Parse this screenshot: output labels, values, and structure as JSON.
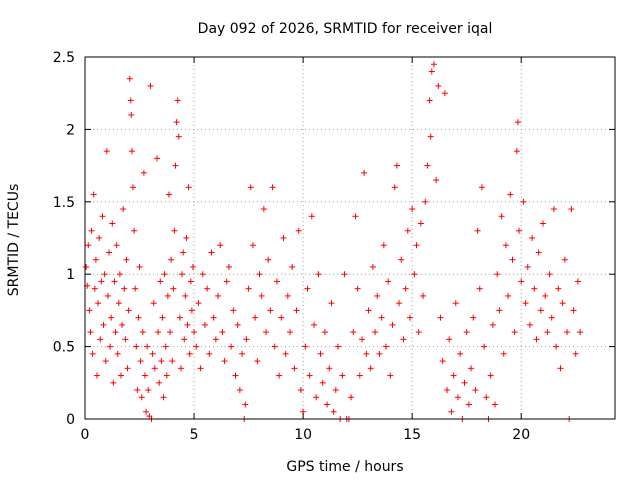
{
  "chart_data": {
    "type": "scatter",
    "title": "Day 092 of 2026, SRMTID for receiver iqal",
    "xlabel": "GPS time / hours",
    "ylabel": "SRMTID / TECUs",
    "xlim": [
      0,
      24.3
    ],
    "ylim": [
      0,
      2.5
    ],
    "x_ticks": [
      0,
      5,
      10,
      15,
      20
    ],
    "x_tick_labels": [
      "0",
      "5",
      "10",
      "15",
      "20"
    ],
    "y_ticks": [
      0,
      0.5,
      1,
      1.5,
      2,
      2.5
    ],
    "y_tick_labels": [
      "0",
      "0.5",
      "1",
      "1.5",
      "2",
      "2.5"
    ],
    "grid": true,
    "marker": "+",
    "marker_color": "#ff0000",
    "series": [
      {
        "name": "SRMTID",
        "points": [
          [
            0.05,
            1.05
          ],
          [
            0.1,
            0.92
          ],
          [
            0.15,
            1.2
          ],
          [
            0.2,
            0.75
          ],
          [
            0.25,
            0.6
          ],
          [
            0.3,
            1.3
          ],
          [
            0.35,
            0.45
          ],
          [
            0.4,
            1.55
          ],
          [
            0.45,
            0.9
          ],
          [
            0.5,
            1.1
          ],
          [
            0.55,
            0.3
          ],
          [
            0.6,
            0.8
          ],
          [
            0.65,
            1.25
          ],
          [
            0.7,
            0.55
          ],
          [
            0.75,
            0.95
          ],
          [
            0.8,
            1.4
          ],
          [
            0.85,
            0.65
          ],
          [
            0.9,
            1.0
          ],
          [
            0.95,
            0.4
          ],
          [
            1.0,
            1.85
          ],
          [
            1.05,
            0.85
          ],
          [
            1.1,
            1.15
          ],
          [
            1.15,
            0.5
          ],
          [
            1.2,
            0.7
          ],
          [
            1.25,
            1.35
          ],
          [
            1.3,
            0.25
          ],
          [
            1.35,
            0.95
          ],
          [
            1.4,
            0.6
          ],
          [
            1.45,
            1.2
          ],
          [
            1.5,
            0.45
          ],
          [
            1.55,
            0.8
          ],
          [
            1.6,
            1.0
          ],
          [
            1.65,
            0.3
          ],
          [
            1.7,
            0.65
          ],
          [
            1.75,
            1.45
          ],
          [
            1.8,
            0.9
          ],
          [
            1.85,
            0.55
          ],
          [
            1.9,
            1.1
          ],
          [
            1.95,
            0.35
          ],
          [
            2.0,
            0.75
          ],
          [
            2.05,
            2.35
          ],
          [
            2.1,
            2.2
          ],
          [
            2.12,
            2.1
          ],
          [
            2.15,
            1.85
          ],
          [
            2.2,
            1.6
          ],
          [
            2.25,
            1.3
          ],
          [
            2.3,
            0.9
          ],
          [
            2.35,
            0.5
          ],
          [
            2.4,
            0.2
          ],
          [
            2.45,
            0.7
          ],
          [
            2.5,
            1.05
          ],
          [
            2.55,
            0.4
          ],
          [
            2.6,
            0.15
          ],
          [
            2.65,
            0.6
          ],
          [
            2.7,
            1.7
          ],
          [
            2.75,
            0.3
          ],
          [
            2.8,
            0.05
          ],
          [
            2.85,
            0.5
          ],
          [
            2.9,
            0.2
          ],
          [
            2.95,
            0.02
          ],
          [
            3.0,
            2.3
          ],
          [
            3.05,
            0.0
          ],
          [
            3.1,
            0.45
          ],
          [
            3.15,
            0.8
          ],
          [
            3.2,
            0.35
          ],
          [
            3.3,
            1.8
          ],
          [
            3.35,
            0.6
          ],
          [
            3.4,
            0.25
          ],
          [
            3.45,
            0.95
          ],
          [
            3.5,
            0.4
          ],
          [
            3.55,
            0.7
          ],
          [
            3.6,
            0.15
          ],
          [
            3.65,
            1.0
          ],
          [
            3.7,
            0.5
          ],
          [
            3.75,
            0.3
          ],
          [
            3.8,
            0.85
          ],
          [
            3.85,
            1.55
          ],
          [
            3.9,
            0.6
          ],
          [
            3.95,
            1.1
          ],
          [
            4.0,
            0.4
          ],
          [
            4.05,
            0.9
          ],
          [
            4.1,
            1.3
          ],
          [
            4.15,
            1.75
          ],
          [
            4.2,
            2.05
          ],
          [
            4.25,
            2.2
          ],
          [
            4.3,
            1.95
          ],
          [
            4.35,
            0.7
          ],
          [
            4.4,
            0.35
          ],
          [
            4.45,
            1.0
          ],
          [
            4.5,
            1.15
          ],
          [
            4.55,
            0.55
          ],
          [
            4.6,
            0.85
          ],
          [
            4.65,
            1.25
          ],
          [
            4.7,
            0.65
          ],
          [
            4.75,
            1.6
          ],
          [
            4.8,
            0.45
          ],
          [
            4.85,
            0.95
          ],
          [
            4.9,
            0.75
          ],
          [
            4.95,
            1.05
          ],
          [
            5.0,
            0.6
          ],
          [
            5.1,
            0.5
          ],
          [
            5.2,
            0.8
          ],
          [
            5.3,
            0.35
          ],
          [
            5.4,
            1.0
          ],
          [
            5.5,
            0.65
          ],
          [
            5.6,
            0.9
          ],
          [
            5.7,
            0.45
          ],
          [
            5.8,
            1.15
          ],
          [
            5.9,
            0.7
          ],
          [
            6.0,
            0.55
          ],
          [
            6.1,
            0.85
          ],
          [
            6.2,
            1.2
          ],
          [
            6.3,
            0.6
          ],
          [
            6.4,
            0.4
          ],
          [
            6.5,
            0.95
          ],
          [
            6.6,
            1.05
          ],
          [
            6.7,
            0.5
          ],
          [
            6.8,
            0.75
          ],
          [
            6.9,
            0.3
          ],
          [
            7.0,
            0.65
          ],
          [
            7.1,
            0.2
          ],
          [
            7.2,
            0.45
          ],
          [
            7.3,
            0.0
          ],
          [
            7.35,
            0.1
          ],
          [
            7.4,
            0.55
          ],
          [
            7.5,
            0.9
          ],
          [
            7.6,
            1.6
          ],
          [
            7.7,
            1.2
          ],
          [
            7.8,
            0.7
          ],
          [
            7.9,
            0.4
          ],
          [
            8.0,
            1.0
          ],
          [
            8.1,
            0.85
          ],
          [
            8.2,
            1.45
          ],
          [
            8.3,
            0.6
          ],
          [
            8.4,
            1.1
          ],
          [
            8.5,
            0.75
          ],
          [
            8.6,
            1.6
          ],
          [
            8.7,
            0.5
          ],
          [
            8.8,
            0.95
          ],
          [
            8.9,
            0.3
          ],
          [
            9.0,
            0.7
          ],
          [
            9.1,
            1.25
          ],
          [
            9.2,
            0.45
          ],
          [
            9.3,
            0.85
          ],
          [
            9.4,
            0.6
          ],
          [
            9.5,
            1.05
          ],
          [
            9.6,
            0.35
          ],
          [
            9.7,
            0.75
          ],
          [
            9.8,
            1.3
          ],
          [
            9.9,
            0.2
          ],
          [
            10.0,
            0.05
          ],
          [
            10.1,
            0.5
          ],
          [
            10.2,
            0.9
          ],
          [
            10.3,
            0.3
          ],
          [
            10.4,
            1.4
          ],
          [
            10.5,
            0.65
          ],
          [
            10.6,
            0.15
          ],
          [
            10.7,
            1.0
          ],
          [
            10.8,
            0.45
          ],
          [
            10.9,
            0.25
          ],
          [
            11.0,
            0.6
          ],
          [
            11.1,
            0.1
          ],
          [
            11.2,
            0.35
          ],
          [
            11.3,
            0.8
          ],
          [
            11.4,
            0.05
          ],
          [
            11.5,
            0.2
          ],
          [
            11.6,
            0.5
          ],
          [
            11.7,
            0.0
          ],
          [
            11.8,
            0.3
          ],
          [
            11.9,
            1.0
          ],
          [
            12.0,
            0.0
          ],
          [
            12.1,
            0.0
          ],
          [
            12.2,
            0.15
          ],
          [
            12.3,
            0.6
          ],
          [
            12.4,
            1.4
          ],
          [
            12.5,
            0.9
          ],
          [
            12.6,
            0.3
          ],
          [
            12.7,
            0.55
          ],
          [
            12.8,
            1.7
          ],
          [
            12.9,
            0.45
          ],
          [
            13.0,
            0.75
          ],
          [
            13.1,
            0.35
          ],
          [
            13.2,
            1.05
          ],
          [
            13.3,
            0.6
          ],
          [
            13.4,
            0.85
          ],
          [
            13.5,
            0.45
          ],
          [
            13.6,
            0.7
          ],
          [
            13.7,
            1.2
          ],
          [
            13.8,
            0.5
          ],
          [
            13.9,
            0.95
          ],
          [
            14.0,
            0.3
          ],
          [
            14.1,
            0.65
          ],
          [
            14.2,
            1.6
          ],
          [
            14.3,
            1.75
          ],
          [
            14.4,
            0.8
          ],
          [
            14.5,
            1.1
          ],
          [
            14.6,
            0.55
          ],
          [
            14.7,
            0.9
          ],
          [
            14.8,
            1.3
          ],
          [
            14.9,
            0.7
          ],
          [
            15.0,
            1.45
          ],
          [
            15.1,
            1.0
          ],
          [
            15.2,
            1.2
          ],
          [
            15.3,
            0.6
          ],
          [
            15.4,
            1.35
          ],
          [
            15.5,
            0.85
          ],
          [
            15.6,
            1.5
          ],
          [
            15.7,
            1.75
          ],
          [
            15.8,
            2.2
          ],
          [
            15.85,
            1.95
          ],
          [
            15.9,
            2.4
          ],
          [
            16.0,
            2.45
          ],
          [
            16.1,
            1.65
          ],
          [
            16.2,
            2.3
          ],
          [
            16.3,
            0.7
          ],
          [
            16.4,
            0.4
          ],
          [
            16.5,
            2.25
          ],
          [
            16.6,
            0.2
          ],
          [
            16.7,
            0.55
          ],
          [
            16.8,
            0.05
          ],
          [
            16.9,
            0.3
          ],
          [
            17.0,
            0.8
          ],
          [
            17.1,
            0.15
          ],
          [
            17.2,
            0.45
          ],
          [
            17.3,
            0.0
          ],
          [
            17.4,
            0.25
          ],
          [
            17.5,
            0.6
          ],
          [
            17.6,
            0.1
          ],
          [
            17.7,
            0.35
          ],
          [
            17.8,
            0.7
          ],
          [
            17.9,
            0.2
          ],
          [
            18.0,
            1.3
          ],
          [
            18.1,
            0.9
          ],
          [
            18.2,
            1.6
          ],
          [
            18.3,
            0.5
          ],
          [
            18.4,
            0.15
          ],
          [
            18.5,
            0.0
          ],
          [
            18.6,
            0.3
          ],
          [
            18.7,
            0.65
          ],
          [
            18.8,
            0.1
          ],
          [
            18.9,
            1.0
          ],
          [
            19.0,
            0.75
          ],
          [
            19.1,
            1.4
          ],
          [
            19.2,
            0.45
          ],
          [
            19.3,
            1.2
          ],
          [
            19.4,
            0.85
          ],
          [
            19.5,
            1.55
          ],
          [
            19.6,
            1.1
          ],
          [
            19.7,
            0.6
          ],
          [
            19.8,
            1.85
          ],
          [
            19.85,
            2.05
          ],
          [
            19.9,
            1.3
          ],
          [
            20.0,
            0.95
          ],
          [
            20.1,
            1.5
          ],
          [
            20.2,
            0.8
          ],
          [
            20.3,
            1.05
          ],
          [
            20.4,
            0.65
          ],
          [
            20.5,
            1.25
          ],
          [
            20.6,
            0.9
          ],
          [
            20.7,
            0.55
          ],
          [
            20.8,
            1.15
          ],
          [
            20.9,
            0.75
          ],
          [
            21.0,
            1.35
          ],
          [
            21.1,
            0.85
          ],
          [
            21.2,
            0.6
          ],
          [
            21.3,
            1.0
          ],
          [
            21.4,
            0.7
          ],
          [
            21.5,
            1.45
          ],
          [
            21.6,
            0.5
          ],
          [
            21.7,
            0.9
          ],
          [
            21.8,
            0.35
          ],
          [
            21.9,
            0.8
          ],
          [
            22.0,
            1.1
          ],
          [
            22.1,
            0.6
          ],
          [
            22.2,
            0.0
          ],
          [
            22.3,
            1.45
          ],
          [
            22.4,
            0.75
          ],
          [
            22.5,
            0.45
          ],
          [
            22.6,
            0.95
          ],
          [
            22.7,
            0.6
          ]
        ]
      }
    ]
  }
}
